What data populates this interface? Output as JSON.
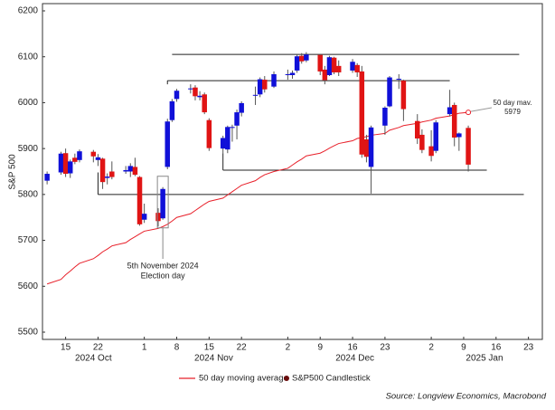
{
  "chart_data": {
    "type": "candlestick",
    "ylabel": "S&P 500",
    "x": [
      "2024-10-11",
      "2024-10-14",
      "2024-10-15",
      "2024-10-16",
      "2024-10-17",
      "2024-10-18",
      "2024-10-21",
      "2024-10-22",
      "2024-10-23",
      "2024-10-24",
      "2024-10-25",
      "2024-10-28",
      "2024-10-29",
      "2024-10-30",
      "2024-10-31",
      "2024-11-01",
      "2024-11-04",
      "2024-11-05",
      "2024-11-06",
      "2024-11-07",
      "2024-11-08",
      "2024-11-11",
      "2024-11-12",
      "2024-11-13",
      "2024-11-14",
      "2024-11-15",
      "2024-11-18",
      "2024-11-19",
      "2024-11-20",
      "2024-11-21",
      "2024-11-22",
      "2024-11-25",
      "2024-11-26",
      "2024-11-27",
      "2024-11-29",
      "2024-12-02",
      "2024-12-03",
      "2024-12-04",
      "2024-12-05",
      "2024-12-06",
      "2024-12-09",
      "2024-12-10",
      "2024-12-11",
      "2024-12-12",
      "2024-12-13",
      "2024-12-16",
      "2024-12-17",
      "2024-12-18",
      "2024-12-19",
      "2024-12-20",
      "2024-12-23",
      "2024-12-24",
      "2024-12-26",
      "2024-12-27",
      "2024-12-30",
      "2024-12-31",
      "2025-01-02",
      "2025-01-03",
      "2025-01-06",
      "2025-01-07",
      "2025-01-08",
      "2025-01-10"
    ],
    "candles": {
      "name": "S&P500 Candlestick",
      "up_color": "#1010d8",
      "down_color": "#e01414",
      "wick_color": "#555555",
      "legend_color": "#6b0d0d",
      "open": [
        5830,
        5848,
        5890,
        5846,
        5880,
        5875,
        5893,
        5875,
        5878,
        5836,
        5850,
        5850,
        5850,
        5860,
        5838,
        5745,
        5760,
        5748,
        5860,
        5962,
        6008,
        6030,
        6033,
        6012,
        6018,
        5962,
        5900,
        5898,
        5945,
        5950,
        5978,
        6015,
        6018,
        6050,
        6035,
        6062,
        6060,
        6070,
        6102,
        6092,
        6104,
        6072,
        6060,
        6098,
        6080,
        6070,
        6082,
        6068,
        5920,
        5860,
        5950,
        5992,
        6050,
        6048,
        5960,
        5930,
        5905,
        5895,
        5975,
        5995,
        5925,
        5945
      ],
      "high": [
        5850,
        5893,
        5900,
        5876,
        5889,
        5898,
        5897,
        5888,
        5880,
        5846,
        5872,
        5862,
        5868,
        5880,
        5840,
        5780,
        5770,
        5816,
        5965,
        6008,
        6030,
        6040,
        6038,
        6025,
        6022,
        5966,
        5928,
        5950,
        5952,
        5985,
        6003,
        6035,
        6055,
        6058,
        6068,
        6072,
        6070,
        6104,
        6108,
        6110,
        6106,
        6080,
        6102,
        6100,
        6092,
        6095,
        6086,
        6080,
        5930,
        5950,
        5992,
        6058,
        6062,
        6050,
        5975,
        5942,
        5940,
        5962,
        6028,
        6000,
        5935,
        5950
      ],
      "low": [
        5822,
        5843,
        5838,
        5836,
        5866,
        5870,
        5870,
        5862,
        5812,
        5822,
        5833,
        5845,
        5838,
        5840,
        5732,
        5738,
        5730,
        5745,
        5855,
        5958,
        6002,
        6020,
        6005,
        6005,
        5975,
        5895,
        5890,
        5890,
        5915,
        5920,
        5970,
        5995,
        6012,
        6022,
        6032,
        6050,
        6052,
        6065,
        6085,
        6088,
        6060,
        6040,
        6058,
        6062,
        6058,
        6065,
        6056,
        5880,
        5870,
        5802,
        5930,
        5990,
        6030,
        5960,
        5910,
        5890,
        5872,
        5890,
        5970,
        5905,
        5895,
        5850
      ],
      "close": [
        5845,
        5889,
        5845,
        5872,
        5871,
        5894,
        5883,
        5881,
        5827,
        5839,
        5838,
        5853,
        5862,
        5843,
        5735,
        5758,
        5742,
        5812,
        5959,
        6003,
        6026,
        6031,
        6014,
        6015,
        5979,
        5901,
        5923,
        5947,
        5947,
        5979,
        5999,
        6017,
        6051,
        6029,
        6062,
        6062,
        6065,
        6101,
        6090,
        6105,
        6068,
        6049,
        6099,
        6066,
        6066,
        6089,
        6066,
        5887,
        5882,
        5946,
        5989,
        6055,
        6052,
        5986,
        5922,
        5897,
        5884,
        5957,
        5990,
        5924,
        5933,
        5865
      ]
    },
    "series": [
      {
        "name": "50 day moving average",
        "color": "#e8202a",
        "values": [
          5605,
          5615,
          5625,
          5633,
          5642,
          5650,
          5660,
          5667,
          5675,
          5681,
          5688,
          5695,
          5702,
          5708,
          5714,
          5720,
          5726,
          5730,
          5735,
          5742,
          5750,
          5758,
          5765,
          5772,
          5779,
          5785,
          5792,
          5799,
          5806,
          5813,
          5820,
          5830,
          5837,
          5843,
          5850,
          5857,
          5864,
          5871,
          5877,
          5884,
          5890,
          5895,
          5901,
          5906,
          5911,
          5917,
          5922,
          5924,
          5926,
          5929,
          5933,
          5940,
          5946,
          5950,
          5955,
          5958,
          5962,
          5966,
          5971,
          5974,
          5977,
          5979
        ]
      }
    ],
    "ylim": [
      5500,
      6200
    ],
    "yticks": [
      5500,
      5600,
      5700,
      5800,
      5900,
      6000,
      6100,
      6200
    ],
    "xlim": [
      "2024-10-10",
      "2025-01-26"
    ],
    "xticks": [
      {
        "value": "2024-10-15",
        "label": "15"
      },
      {
        "value": "2024-10-22",
        "label": "22"
      },
      {
        "value": "2024-11-01",
        "label": "1"
      },
      {
        "value": "2024-11-08",
        "label": "8"
      },
      {
        "value": "2024-11-15",
        "label": "15"
      },
      {
        "value": "2024-11-22",
        "label": "22"
      },
      {
        "value": "2024-12-02",
        "label": "2"
      },
      {
        "value": "2024-12-09",
        "label": "9"
      },
      {
        "value": "2024-12-16",
        "label": "16"
      },
      {
        "value": "2024-12-23",
        "label": "23"
      },
      {
        "value": "2025-01-02",
        "label": "2"
      },
      {
        "value": "2025-01-09",
        "label": "9"
      },
      {
        "value": "2025-01-16",
        "label": "16"
      },
      {
        "value": "2025-01-23",
        "label": "23"
      }
    ],
    "month_labels": [
      {
        "value": "2024-10",
        "label": "2024 Oct"
      },
      {
        "value": "2024-11",
        "label": "2024 Nov"
      },
      {
        "value": "2024-12",
        "label": "2024 Dec"
      },
      {
        "value": "2025-01",
        "label": "2025 Jan"
      }
    ],
    "annotations": [
      {
        "x": "2024-11-05",
        "text": [
          "5th November 2024",
          "Election day"
        ]
      }
    ],
    "ma_label": "50 day mav.",
    "reference_lines": [
      {
        "y": 6105,
        "from": "2024-11-07",
        "to": "2025-01-21"
      },
      {
        "y": 6048,
        "from": "2024-11-06",
        "to": "2025-01-06",
        "rise_from": 6040
      },
      {
        "y": 5853,
        "from": "2024-11-18",
        "to": "2025-01-14",
        "rise_from": 5890
      },
      {
        "y": 5800,
        "from": "2024-10-22",
        "to": "2025-01-22",
        "rise_from": 5848
      }
    ],
    "grid": false,
    "source": "Source: Longview Economics, Macrobond"
  }
}
